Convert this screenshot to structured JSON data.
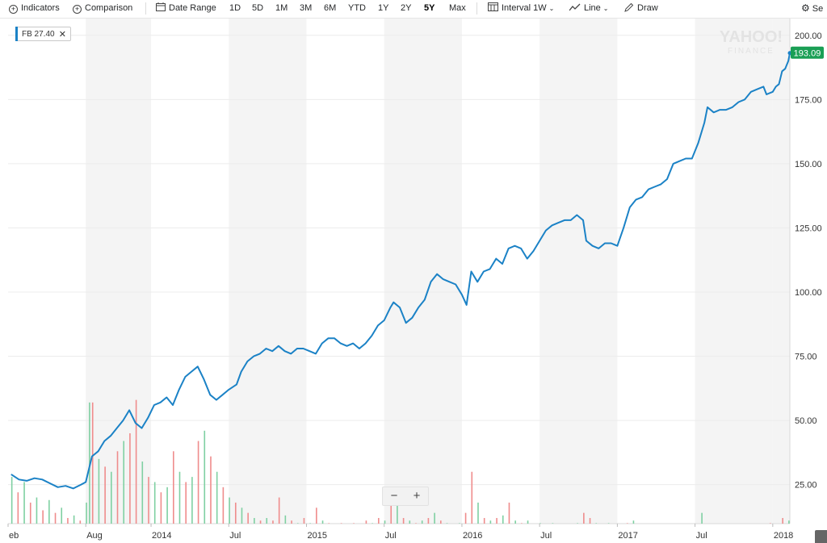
{
  "toolbar": {
    "indicators": "Indicators",
    "comparison": "Comparison",
    "date_range": "Date Range",
    "ranges": [
      "1D",
      "5D",
      "1M",
      "3M",
      "6M",
      "YTD",
      "1Y",
      "2Y",
      "5Y",
      "Max"
    ],
    "active_range": "5Y",
    "interval_label": "Interval",
    "interval_value": "1W",
    "line_label": "Line",
    "draw_label": "Draw",
    "settings_label": "Se"
  },
  "chip": {
    "label": "FB 27.40",
    "close": "✕"
  },
  "watermark": {
    "line1": "YAHOO!",
    "line2": "FINANCE"
  },
  "zoom": {
    "minus": "−",
    "plus": "+"
  },
  "colors": {
    "line": "#1b82c6",
    "price_tag": "#1a9f55",
    "vol_up": "#7fd0a2",
    "vol_down": "#ef8c8c",
    "band": "#f4f4f4",
    "axis_text": "#333333"
  },
  "chart_data": {
    "type": "line",
    "title": "FB",
    "ylabel": "",
    "xlabel": "",
    "ylim": [
      15,
      205
    ],
    "x_range": [
      2013.1,
      2018.11
    ],
    "y_ticks": [
      25,
      50,
      75,
      100,
      125,
      150,
      175,
      200
    ],
    "y_tick_labels": [
      "25.00",
      "50.00",
      "75.00",
      "100.00",
      "125.00",
      "150.00",
      "175.00",
      "200.00"
    ],
    "x_ticks": [
      {
        "x": 2013.08,
        "label": "eb"
      },
      {
        "x": 2013.58,
        "label": "Aug"
      },
      {
        "x": 2014.0,
        "label": "2014"
      },
      {
        "x": 2014.5,
        "label": "Jul"
      },
      {
        "x": 2015.0,
        "label": "2015"
      },
      {
        "x": 2015.5,
        "label": "Jul"
      },
      {
        "x": 2016.0,
        "label": "2016"
      },
      {
        "x": 2016.5,
        "label": "Jul"
      },
      {
        "x": 2017.0,
        "label": "2017"
      },
      {
        "x": 2017.5,
        "label": "Jul"
      },
      {
        "x": 2018.0,
        "label": "2018"
      }
    ],
    "bands": [
      [
        2013.58,
        2014.0
      ],
      [
        2014.5,
        2015.0
      ],
      [
        2015.5,
        2016.0
      ],
      [
        2016.5,
        2017.0
      ],
      [
        2017.5,
        2018.0
      ]
    ],
    "last_price": 193.09,
    "last_price_label": "193.09",
    "series": [
      {
        "name": "FB",
        "points": [
          [
            2013.1,
            29
          ],
          [
            2013.15,
            27
          ],
          [
            2013.2,
            26.5
          ],
          [
            2013.25,
            27.5
          ],
          [
            2013.3,
            27
          ],
          [
            2013.35,
            25.5
          ],
          [
            2013.4,
            24
          ],
          [
            2013.45,
            24.5
          ],
          [
            2013.5,
            23.5
          ],
          [
            2013.55,
            25
          ],
          [
            2013.58,
            26
          ],
          [
            2013.62,
            36
          ],
          [
            2013.66,
            38
          ],
          [
            2013.7,
            42
          ],
          [
            2013.74,
            44
          ],
          [
            2013.78,
            47
          ],
          [
            2013.82,
            50
          ],
          [
            2013.86,
            54
          ],
          [
            2013.9,
            49
          ],
          [
            2013.94,
            47
          ],
          [
            2013.98,
            51
          ],
          [
            2014.02,
            56
          ],
          [
            2014.06,
            57
          ],
          [
            2014.1,
            59
          ],
          [
            2014.14,
            56
          ],
          [
            2014.18,
            62
          ],
          [
            2014.22,
            67
          ],
          [
            2014.26,
            69
          ],
          [
            2014.3,
            71
          ],
          [
            2014.34,
            66
          ],
          [
            2014.38,
            60
          ],
          [
            2014.42,
            58
          ],
          [
            2014.46,
            60
          ],
          [
            2014.5,
            62
          ],
          [
            2014.55,
            64
          ],
          [
            2014.58,
            69
          ],
          [
            2014.62,
            73
          ],
          [
            2014.66,
            75
          ],
          [
            2014.7,
            76
          ],
          [
            2014.74,
            78
          ],
          [
            2014.78,
            77
          ],
          [
            2014.82,
            79
          ],
          [
            2014.86,
            77
          ],
          [
            2014.9,
            76
          ],
          [
            2014.94,
            78
          ],
          [
            2014.98,
            78
          ],
          [
            2015.02,
            77
          ],
          [
            2015.06,
            76
          ],
          [
            2015.1,
            80
          ],
          [
            2015.14,
            82
          ],
          [
            2015.18,
            82
          ],
          [
            2015.22,
            80
          ],
          [
            2015.26,
            79
          ],
          [
            2015.3,
            80
          ],
          [
            2015.34,
            78
          ],
          [
            2015.38,
            80
          ],
          [
            2015.42,
            83
          ],
          [
            2015.46,
            87
          ],
          [
            2015.5,
            89
          ],
          [
            2015.54,
            94
          ],
          [
            2015.56,
            96
          ],
          [
            2015.6,
            94
          ],
          [
            2015.64,
            88
          ],
          [
            2015.68,
            90
          ],
          [
            2015.72,
            94
          ],
          [
            2015.76,
            97
          ],
          [
            2015.8,
            104
          ],
          [
            2015.84,
            107
          ],
          [
            2015.88,
            105
          ],
          [
            2015.92,
            104
          ],
          [
            2015.96,
            103
          ],
          [
            2016.0,
            99
          ],
          [
            2016.03,
            95
          ],
          [
            2016.06,
            108
          ],
          [
            2016.1,
            104
          ],
          [
            2016.14,
            108
          ],
          [
            2016.18,
            109
          ],
          [
            2016.22,
            113
          ],
          [
            2016.26,
            111
          ],
          [
            2016.3,
            117
          ],
          [
            2016.34,
            118
          ],
          [
            2016.38,
            117
          ],
          [
            2016.42,
            113
          ],
          [
            2016.46,
            116
          ],
          [
            2016.5,
            120
          ],
          [
            2016.54,
            124
          ],
          [
            2016.58,
            126
          ],
          [
            2016.62,
            127
          ],
          [
            2016.66,
            128
          ],
          [
            2016.7,
            128
          ],
          [
            2016.74,
            130
          ],
          [
            2016.78,
            128
          ],
          [
            2016.8,
            120
          ],
          [
            2016.84,
            118
          ],
          [
            2016.88,
            117
          ],
          [
            2016.92,
            119
          ],
          [
            2016.96,
            119
          ],
          [
            2017.0,
            118
          ],
          [
            2017.04,
            125
          ],
          [
            2017.08,
            133
          ],
          [
            2017.12,
            136
          ],
          [
            2017.16,
            137
          ],
          [
            2017.2,
            140
          ],
          [
            2017.24,
            141
          ],
          [
            2017.28,
            142
          ],
          [
            2017.32,
            144
          ],
          [
            2017.36,
            150
          ],
          [
            2017.4,
            151
          ],
          [
            2017.44,
            152
          ],
          [
            2017.48,
            152
          ],
          [
            2017.52,
            158
          ],
          [
            2017.56,
            166
          ],
          [
            2017.58,
            172
          ],
          [
            2017.62,
            170
          ],
          [
            2017.66,
            171
          ],
          [
            2017.7,
            171
          ],
          [
            2017.74,
            172
          ],
          [
            2017.78,
            174
          ],
          [
            2017.82,
            175
          ],
          [
            2017.86,
            178
          ],
          [
            2017.9,
            179
          ],
          [
            2017.94,
            180
          ],
          [
            2017.96,
            177
          ],
          [
            2018.0,
            178
          ],
          [
            2018.02,
            180
          ],
          [
            2018.04,
            181
          ],
          [
            2018.06,
            186
          ],
          [
            2018.08,
            187
          ],
          [
            2018.1,
            190
          ],
          [
            2018.11,
            193.09
          ]
        ]
      }
    ],
    "volume": [
      [
        2013.1,
        28,
        0
      ],
      [
        2013.14,
        22,
        1
      ],
      [
        2013.18,
        26,
        0
      ],
      [
        2013.22,
        18,
        1
      ],
      [
        2013.26,
        20,
        0
      ],
      [
        2013.3,
        15,
        1
      ],
      [
        2013.34,
        19,
        0
      ],
      [
        2013.38,
        14,
        1
      ],
      [
        2013.42,
        16,
        0
      ],
      [
        2013.46,
        12,
        1
      ],
      [
        2013.5,
        13,
        0
      ],
      [
        2013.54,
        11,
        1
      ],
      [
        2013.58,
        18,
        0
      ],
      [
        2013.6,
        57,
        0
      ],
      [
        2013.62,
        57,
        1
      ],
      [
        2013.66,
        35,
        0
      ],
      [
        2013.7,
        32,
        1
      ],
      [
        2013.74,
        30,
        0
      ],
      [
        2013.78,
        38,
        1
      ],
      [
        2013.82,
        42,
        0
      ],
      [
        2013.86,
        45,
        1
      ],
      [
        2013.9,
        58,
        1
      ],
      [
        2013.94,
        34,
        0
      ],
      [
        2013.98,
        28,
        1
      ],
      [
        2014.02,
        26,
        0
      ],
      [
        2014.06,
        22,
        1
      ],
      [
        2014.1,
        24,
        0
      ],
      [
        2014.14,
        38,
        1
      ],
      [
        2014.18,
        30,
        0
      ],
      [
        2014.22,
        26,
        1
      ],
      [
        2014.26,
        28,
        0
      ],
      [
        2014.3,
        42,
        1
      ],
      [
        2014.34,
        46,
        0
      ],
      [
        2014.38,
        36,
        1
      ],
      [
        2014.42,
        30,
        0
      ],
      [
        2014.46,
        24,
        1
      ],
      [
        2014.5,
        20,
        0
      ],
      [
        2014.54,
        18,
        1
      ],
      [
        2014.58,
        16,
        0
      ],
      [
        2014.62,
        14,
        1
      ],
      [
        2014.66,
        12,
        0
      ],
      [
        2014.7,
        11,
        1
      ],
      [
        2014.74,
        12,
        0
      ],
      [
        2014.78,
        11,
        1
      ],
      [
        2014.82,
        20,
        1
      ],
      [
        2014.86,
        13,
        0
      ],
      [
        2014.9,
        11,
        1
      ],
      [
        2014.94,
        10,
        0
      ],
      [
        2014.98,
        12,
        1
      ],
      [
        2015.02,
        10,
        0
      ],
      [
        2015.06,
        16,
        1
      ],
      [
        2015.1,
        11,
        0
      ],
      [
        2015.14,
        10,
        1
      ],
      [
        2015.18,
        9,
        0
      ],
      [
        2015.22,
        10,
        1
      ],
      [
        2015.26,
        9,
        0
      ],
      [
        2015.3,
        10,
        1
      ],
      [
        2015.34,
        9,
        0
      ],
      [
        2015.38,
        11,
        1
      ],
      [
        2015.42,
        10,
        0
      ],
      [
        2015.46,
        12,
        1
      ],
      [
        2015.5,
        11,
        0
      ],
      [
        2015.54,
        24,
        1
      ],
      [
        2015.58,
        22,
        0
      ],
      [
        2015.62,
        12,
        1
      ],
      [
        2015.66,
        11,
        0
      ],
      [
        2015.7,
        10,
        1
      ],
      [
        2015.74,
        11,
        0
      ],
      [
        2015.78,
        12,
        1
      ],
      [
        2015.82,
        14,
        0
      ],
      [
        2015.86,
        11,
        1
      ],
      [
        2015.9,
        10,
        0
      ],
      [
        2015.94,
        9,
        1
      ],
      [
        2015.98,
        10,
        0
      ],
      [
        2016.02,
        14,
        1
      ],
      [
        2016.06,
        30,
        1
      ],
      [
        2016.1,
        18,
        0
      ],
      [
        2016.14,
        12,
        1
      ],
      [
        2016.18,
        11,
        0
      ],
      [
        2016.22,
        12,
        1
      ],
      [
        2016.26,
        13,
        0
      ],
      [
        2016.3,
        18,
        1
      ],
      [
        2016.34,
        11,
        0
      ],
      [
        2016.38,
        10,
        1
      ],
      [
        2016.42,
        11,
        0
      ],
      [
        2016.46,
        9,
        1
      ],
      [
        2016.5,
        10,
        0
      ],
      [
        2016.54,
        9,
        1
      ],
      [
        2016.58,
        10,
        0
      ],
      [
        2016.62,
        9,
        1
      ],
      [
        2016.66,
        8,
        0
      ],
      [
        2016.7,
        9,
        1
      ],
      [
        2016.74,
        10,
        0
      ],
      [
        2016.78,
        14,
        1
      ],
      [
        2016.82,
        12,
        1
      ],
      [
        2016.86,
        10,
        0
      ],
      [
        2016.9,
        9,
        1
      ],
      [
        2016.94,
        10,
        0
      ],
      [
        2016.98,
        9,
        1
      ],
      [
        2017.02,
        9,
        0
      ],
      [
        2017.06,
        10,
        1
      ],
      [
        2017.1,
        11,
        0
      ],
      [
        2017.14,
        9,
        1
      ],
      [
        2017.18,
        8,
        0
      ],
      [
        2017.22,
        9,
        1
      ],
      [
        2017.26,
        8,
        0
      ],
      [
        2017.3,
        9,
        1
      ],
      [
        2017.34,
        8,
        0
      ],
      [
        2017.38,
        9,
        1
      ],
      [
        2017.42,
        8,
        0
      ],
      [
        2017.46,
        9,
        1
      ],
      [
        2017.5,
        8,
        0
      ],
      [
        2017.54,
        14,
        0
      ],
      [
        2017.58,
        9,
        1
      ],
      [
        2017.62,
        8,
        0
      ],
      [
        2017.66,
        8,
        1
      ],
      [
        2017.7,
        7,
        0
      ],
      [
        2017.74,
        8,
        1
      ],
      [
        2017.78,
        7,
        0
      ],
      [
        2017.82,
        9,
        1
      ],
      [
        2017.86,
        8,
        0
      ],
      [
        2017.9,
        9,
        1
      ],
      [
        2017.94,
        8,
        0
      ],
      [
        2017.98,
        10,
        1
      ],
      [
        2018.02,
        9,
        0
      ],
      [
        2018.06,
        12,
        1
      ],
      [
        2018.1,
        11,
        0
      ]
    ]
  }
}
